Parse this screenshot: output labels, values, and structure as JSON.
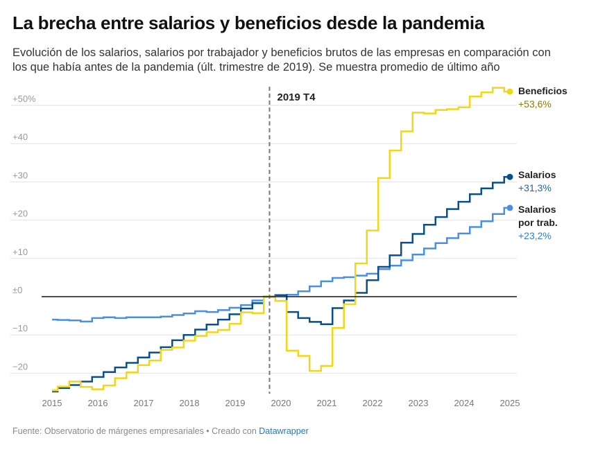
{
  "title": "La brecha entre salarios y beneficios desde la pandemia",
  "subtitle": "Evolución de los salarios, salarios por trabajador y beneficios brutos de las empresas en comparación con los que había antes de la pandemia (últ. trimestre de 2019). Se muestra promedio de último año",
  "footer": {
    "source": "Fuente: Observatorio de márgenes empresariales • Creado con ",
    "link": "Datawrapper"
  },
  "chart_data": {
    "type": "line",
    "step": true,
    "x_start": 2015.0,
    "x_step": "quarter",
    "xlim": [
      2015,
      2025
    ],
    "ylim": [
      -25,
      55
    ],
    "x_ticks": [
      "2015",
      "2016",
      "2017",
      "2018",
      "2019",
      "2020",
      "2021",
      "2022",
      "2023",
      "2024",
      "2025"
    ],
    "y_ticks": [
      {
        "v": 50,
        "label": "+50%"
      },
      {
        "v": 40,
        "label": "+40"
      },
      {
        "v": 30,
        "label": "+30"
      },
      {
        "v": 20,
        "label": "+20"
      },
      {
        "v": 10,
        "label": "+10"
      },
      {
        "v": 0,
        "label": "±0"
      },
      {
        "v": -10,
        "label": "−10"
      },
      {
        "v": -20,
        "label": "−20"
      }
    ],
    "grid": true,
    "annotation": {
      "x": 2019.75,
      "label": "2019 T4"
    },
    "series": [
      {
        "name": "Beneficios",
        "end_label": "+53,6%",
        "color": "#f0d818",
        "label_color": "#8a7d00",
        "values": [
          -24.5,
          -23.5,
          -22.2,
          -23.6,
          -24.2,
          -23.2,
          -21.3,
          -19.8,
          -17.9,
          -16.7,
          -13.9,
          -13.3,
          -11.5,
          -10.3,
          -9.3,
          -8.7,
          -7.1,
          -4.1,
          -4.3,
          0,
          -1.1,
          -14.1,
          -15.5,
          -19.4,
          -18.1,
          -8.2,
          -2.0,
          8.7,
          17.3,
          31.0,
          38.2,
          43.2,
          48.1,
          47.9,
          48.8,
          49.0,
          49.5,
          52.3,
          53.4,
          54.6,
          53.6
        ]
      },
      {
        "name": "Salarios",
        "end_label": "+31,3%",
        "color": "#08508c",
        "label_color": "#1d64a8",
        "values": [
          -24.8,
          -23.9,
          -23.1,
          -22.2,
          -21.0,
          -19.7,
          -18.5,
          -17.3,
          -15.9,
          -14.6,
          -13.2,
          -11.4,
          -10.0,
          -8.6,
          -7.3,
          -6.0,
          -4.6,
          -3.1,
          -1.7,
          0,
          0.4,
          -4.0,
          -5.6,
          -6.6,
          -7.2,
          -3.0,
          -1.0,
          1.0,
          4.3,
          7.8,
          10.8,
          14.1,
          16.4,
          18.8,
          20.8,
          22.9,
          24.8,
          26.8,
          28.3,
          29.8,
          31.3
        ]
      },
      {
        "name": "Salarios por trab.",
        "name_lines": [
          "Salarios",
          "por trab."
        ],
        "end_label": "+23,2%",
        "color": "#4a8fe0",
        "label_color": "#2f7fd0",
        "values": [
          -6.0,
          -6.1,
          -6.2,
          -6.5,
          -5.6,
          -5.4,
          -5.6,
          -5.4,
          -5.4,
          -5.4,
          -5.2,
          -4.8,
          -4.4,
          -3.8,
          -4.0,
          -3.5,
          -2.9,
          -2.2,
          -1.0,
          0,
          0.4,
          0.5,
          1.4,
          2.7,
          4.0,
          4.9,
          5.1,
          5.5,
          6.0,
          7.2,
          8.1,
          9.5,
          11.0,
          12.6,
          14.0,
          15.3,
          16.5,
          18.2,
          19.7,
          21.6,
          23.2
        ]
      }
    ]
  }
}
